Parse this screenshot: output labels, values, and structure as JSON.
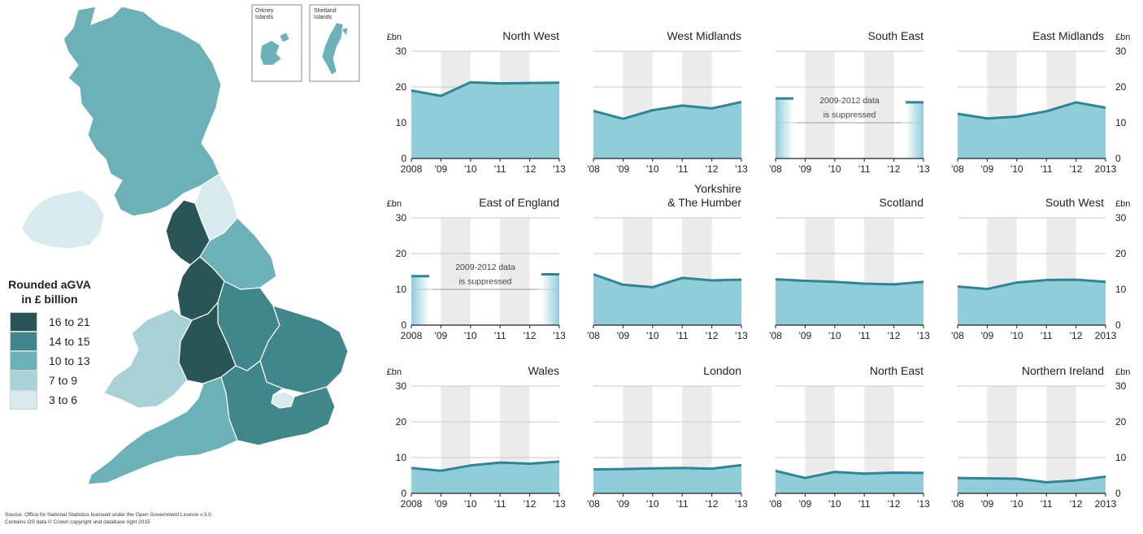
{
  "map": {
    "legend_title_line1": "Rounded aGVA",
    "legend_title_line2": "in £ billion",
    "legend": [
      {
        "label": "16 to 21",
        "color": "#2a5557"
      },
      {
        "label": "14 to 15",
        "color": "#41868b"
      },
      {
        "label": "10 to 13",
        "color": "#6cb0b8"
      },
      {
        "label": "7 to 9",
        "color": "#a9d2d8"
      },
      {
        "label": "3 to 6",
        "color": "#d7ebee"
      }
    ],
    "insets": [
      {
        "line1": "Orkney",
        "line2": "Islands"
      },
      {
        "line1": "Shetland",
        "line2": "Islands"
      }
    ],
    "source_line1": "Source: Office for National Statistics licensed under the Open Government Licence v.3.0.",
    "source_line2": "Contains OS data © Crown copyright and database right 2015"
  },
  "chart_data": [
    {
      "type": "area",
      "title": [
        "North West"
      ],
      "unit": "£bn",
      "unit_side": "left",
      "ylim": [
        0,
        30
      ],
      "yticks": [
        0,
        10,
        20,
        30
      ],
      "x": [
        2008,
        2009,
        2010,
        2011,
        2012,
        2013
      ],
      "xtick_labels": [
        "2008",
        "'09",
        "'10",
        "'11",
        "'12",
        "'13"
      ],
      "values": [
        19,
        17.5,
        21.3,
        21,
        21.1,
        21.2
      ],
      "suppressed": false
    },
    {
      "type": "area",
      "title": [
        "West Midlands"
      ],
      "unit": "",
      "unit_side": "left",
      "ylim": [
        0,
        30
      ],
      "yticks": [
        0,
        10,
        20,
        30
      ],
      "x": [
        2008,
        2009,
        2010,
        2011,
        2012,
        2013
      ],
      "xtick_labels": [
        "'08",
        "'09",
        "'10",
        "'11",
        "'12",
        "'13"
      ],
      "values": [
        13.3,
        11.1,
        13.5,
        14.8,
        14,
        15.8
      ],
      "suppressed": false
    },
    {
      "type": "area",
      "title": [
        "South East"
      ],
      "unit": "",
      "unit_side": "left",
      "ylim": [
        0,
        30
      ],
      "yticks": [
        0,
        10,
        20,
        30
      ],
      "x": [
        2008,
        2009,
        2010,
        2011,
        2012,
        2013
      ],
      "xtick_labels": [
        "'08",
        "'09",
        "'10",
        "'11",
        "'12",
        "'13"
      ],
      "values": [
        16.8,
        null,
        null,
        null,
        null,
        15.7
      ],
      "suppressed": true,
      "note_line1": "2009-2012 data",
      "note_line2": "is suppressed"
    },
    {
      "type": "area",
      "title": [
        "East Midlands"
      ],
      "unit": "£bn",
      "unit_side": "right",
      "ylim": [
        0,
        30
      ],
      "yticks": [
        0,
        10,
        20,
        30
      ],
      "x": [
        2008,
        2009,
        2010,
        2011,
        2012,
        2013
      ],
      "xtick_labels": [
        "'08",
        "'09",
        "'10",
        "'11",
        "'12",
        "2013"
      ],
      "values": [
        12.5,
        11.2,
        11.7,
        13.2,
        15.7,
        14.2
      ],
      "suppressed": false
    },
    {
      "type": "area",
      "title": [
        "East of England"
      ],
      "unit": "£bn",
      "unit_side": "left",
      "ylim": [
        0,
        30
      ],
      "yticks": [
        0,
        10,
        20,
        30
      ],
      "x": [
        2008,
        2009,
        2010,
        2011,
        2012,
        2013
      ],
      "xtick_labels": [
        "2008",
        "'09",
        "'10",
        "'11",
        "'12",
        "'13"
      ],
      "values": [
        13.7,
        null,
        null,
        null,
        null,
        14.2
      ],
      "suppressed": true,
      "note_line1": "2009-2012 data",
      "note_line2": "is suppressed"
    },
    {
      "type": "area",
      "title": [
        "Yorkshire",
        "& The Humber"
      ],
      "unit": "",
      "unit_side": "left",
      "ylim": [
        0,
        30
      ],
      "yticks": [
        0,
        10,
        20,
        30
      ],
      "x": [
        2008,
        2009,
        2010,
        2011,
        2012,
        2013
      ],
      "xtick_labels": [
        "'08",
        "'09",
        "'10",
        "'11",
        "'12",
        "'13"
      ],
      "values": [
        14.2,
        11.3,
        10.6,
        13.2,
        12.5,
        12.7
      ],
      "suppressed": false
    },
    {
      "type": "area",
      "title": [
        "Scotland"
      ],
      "unit": "",
      "unit_side": "left",
      "ylim": [
        0,
        30
      ],
      "yticks": [
        0,
        10,
        20,
        30
      ],
      "x": [
        2008,
        2009,
        2010,
        2011,
        2012,
        2013
      ],
      "xtick_labels": [
        "'08",
        "'09",
        "'10",
        "'11",
        "'12",
        "'13"
      ],
      "values": [
        12.8,
        12.4,
        12.1,
        11.6,
        11.4,
        12.1
      ],
      "suppressed": false
    },
    {
      "type": "area",
      "title": [
        "South West"
      ],
      "unit": "£bn",
      "unit_side": "right",
      "ylim": [
        0,
        30
      ],
      "yticks": [
        0,
        10,
        20,
        30
      ],
      "x": [
        2008,
        2009,
        2010,
        2011,
        2012,
        2013
      ],
      "xtick_labels": [
        "'08",
        "'09",
        "'10",
        "'11",
        "'12",
        "2013"
      ],
      "values": [
        10.8,
        10.1,
        11.9,
        12.6,
        12.7,
        12.1
      ],
      "suppressed": false
    },
    {
      "type": "area",
      "title": [
        "Wales"
      ],
      "unit": "£bn",
      "unit_side": "left",
      "ylim": [
        0,
        30
      ],
      "yticks": [
        0,
        10,
        20,
        30
      ],
      "x": [
        2008,
        2009,
        2010,
        2011,
        2012,
        2013
      ],
      "xtick_labels": [
        "2008",
        "'09",
        "'10",
        "'11",
        "'12",
        "'13"
      ],
      "values": [
        7.1,
        6.3,
        7.8,
        8.6,
        8.3,
        8.9
      ],
      "suppressed": false
    },
    {
      "type": "area",
      "title": [
        "London"
      ],
      "unit": "",
      "unit_side": "left",
      "ylim": [
        0,
        30
      ],
      "yticks": [
        0,
        10,
        20,
        30
      ],
      "x": [
        2008,
        2009,
        2010,
        2011,
        2012,
        2013
      ],
      "xtick_labels": [
        "'08",
        "'09",
        "'10",
        "'11",
        "'12",
        "'13"
      ],
      "values": [
        6.7,
        6.8,
        7.0,
        7.1,
        6.9,
        7.9
      ],
      "suppressed": false
    },
    {
      "type": "area",
      "title": [
        "North East"
      ],
      "unit": "",
      "unit_side": "left",
      "ylim": [
        0,
        30
      ],
      "yticks": [
        0,
        10,
        20,
        30
      ],
      "x": [
        2008,
        2009,
        2010,
        2011,
        2012,
        2013
      ],
      "xtick_labels": [
        "'08",
        "'09",
        "'10",
        "'11",
        "'12",
        "'13"
      ],
      "values": [
        6.3,
        4.3,
        6.0,
        5.5,
        5.8,
        5.7
      ],
      "suppressed": false
    },
    {
      "type": "area",
      "title": [
        "Northern Ireland"
      ],
      "unit": "£bn",
      "unit_side": "right",
      "ylim": [
        0,
        30
      ],
      "yticks": [
        0,
        10,
        20,
        30
      ],
      "x": [
        2008,
        2009,
        2010,
        2011,
        2012,
        2013
      ],
      "xtick_labels": [
        "'08",
        "'09",
        "'10",
        "'11",
        "'12",
        "2013"
      ],
      "values": [
        4.3,
        4.2,
        4.1,
        3.1,
        3.6,
        4.7
      ],
      "suppressed": false
    }
  ]
}
